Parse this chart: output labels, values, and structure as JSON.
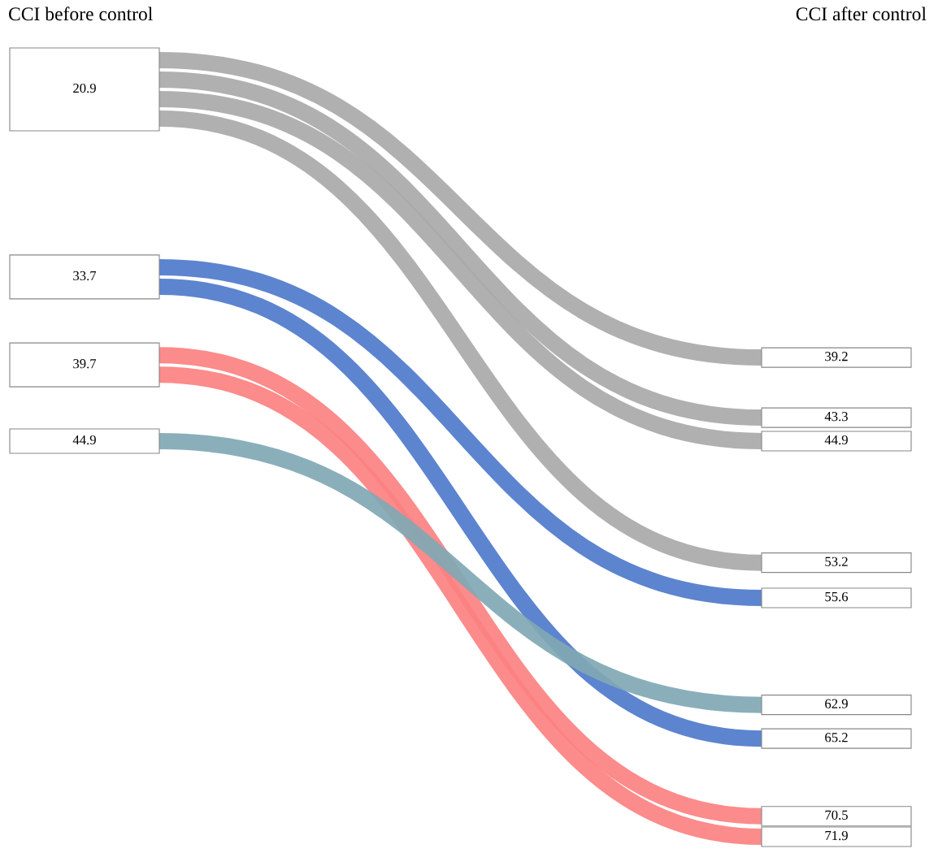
{
  "chart_data": {
    "type": "other",
    "categories": [
      "CCI before control",
      "CCI after control"
    ],
    "series": [
      {
        "color": "#a9a9a9",
        "values": [
          20.9,
          39.2
        ]
      },
      {
        "color": "#a9a9a9",
        "values": [
          null,
          43.3
        ]
      },
      {
        "color": "#a9a9a9",
        "values": [
          null,
          44.9
        ]
      },
      {
        "color": "#a9a9a9",
        "values": [
          null,
          53.2
        ]
      },
      {
        "color": "#4f7acb",
        "values": [
          33.7,
          55.6
        ]
      },
      {
        "color": "#4f7acb",
        "values": [
          null,
          65.2
        ]
      },
      {
        "color": "#fc8181",
        "values": [
          39.7,
          70.5
        ]
      },
      {
        "color": "#fc8181",
        "values": [
          null,
          71.9
        ]
      },
      {
        "color": "#80a8b4",
        "values": [
          44.9,
          62.9
        ]
      }
    ],
    "data_labels": true
  }
}
